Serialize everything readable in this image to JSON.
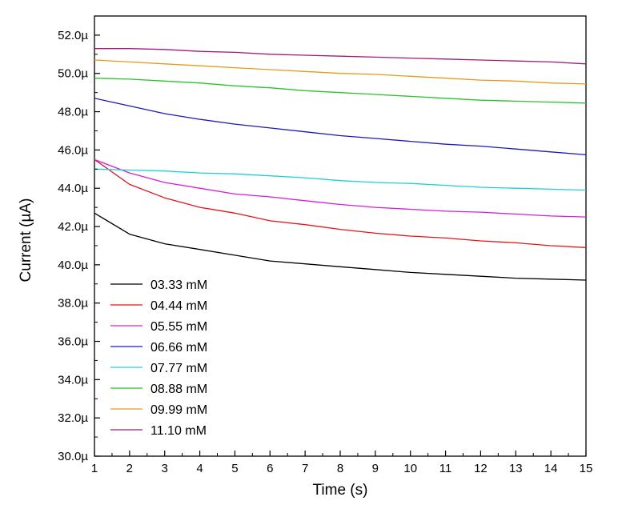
{
  "chart_data": {
    "type": "line",
    "title": "",
    "xlabel": "Time (s)",
    "ylabel": "Current (µA)",
    "xlim": [
      1,
      15
    ],
    "ylim": [
      30.0,
      53.0
    ],
    "x_ticks": [
      1,
      2,
      3,
      4,
      5,
      6,
      7,
      8,
      9,
      10,
      11,
      12,
      13,
      14,
      15
    ],
    "x_tick_labels": [
      "1",
      "2",
      "3",
      "4",
      "5",
      "6",
      "7",
      "8",
      "9",
      "10",
      "11",
      "12",
      "13",
      "14",
      "15"
    ],
    "y_ticks": [
      30,
      32,
      34,
      36,
      38,
      40,
      42,
      44,
      46,
      48,
      50,
      52
    ],
    "y_tick_labels": [
      "30.0µ",
      "32.0µ",
      "34.0µ",
      "36.0µ",
      "38.0µ",
      "40.0µ",
      "42.0µ",
      "44.0µ",
      "46.0µ",
      "48.0µ",
      "50.0µ",
      "52.0µ"
    ],
    "grid": false,
    "legend_position": "bottom-left",
    "x": [
      1,
      2,
      3,
      4,
      5,
      6,
      7,
      8,
      9,
      10,
      11,
      12,
      13,
      14,
      15
    ],
    "series": [
      {
        "name": "03.33 mM",
        "color": "#000000",
        "values": [
          42.7,
          41.6,
          41.1,
          40.8,
          40.5,
          40.2,
          40.05,
          39.9,
          39.75,
          39.6,
          39.5,
          39.4,
          39.3,
          39.25,
          39.2
        ]
      },
      {
        "name": "04.44 mM",
        "color": "#e8141a",
        "values": [
          45.5,
          44.2,
          43.5,
          43.0,
          42.7,
          42.3,
          42.1,
          41.85,
          41.65,
          41.5,
          41.4,
          41.25,
          41.15,
          41.0,
          40.9
        ]
      },
      {
        "name": "05.55 mM",
        "color": "#d61fd6",
        "values": [
          45.5,
          44.8,
          44.3,
          44.0,
          43.7,
          43.55,
          43.35,
          43.15,
          43.0,
          42.9,
          42.8,
          42.75,
          42.65,
          42.55,
          42.5
        ]
      },
      {
        "name": "06.66 mM",
        "color": "#1a1ab8",
        "values": [
          48.7,
          48.3,
          47.9,
          47.6,
          47.35,
          47.15,
          46.95,
          46.75,
          46.6,
          46.45,
          46.3,
          46.2,
          46.05,
          45.9,
          45.75
        ]
      },
      {
        "name": "07.77 mM",
        "color": "#1ad2d6",
        "values": [
          45.0,
          44.95,
          44.9,
          44.8,
          44.75,
          44.65,
          44.55,
          44.4,
          44.3,
          44.25,
          44.15,
          44.05,
          44.0,
          43.95,
          43.9
        ]
      },
      {
        "name": "08.88 mM",
        "color": "#28c428",
        "values": [
          49.75,
          49.7,
          49.6,
          49.5,
          49.35,
          49.25,
          49.1,
          49.0,
          48.9,
          48.8,
          48.7,
          48.6,
          48.55,
          48.5,
          48.45
        ]
      },
      {
        "name": "09.99 mM",
        "color": "#e89a1a",
        "values": [
          50.7,
          50.6,
          50.5,
          50.4,
          50.3,
          50.2,
          50.1,
          50.0,
          49.95,
          49.85,
          49.75,
          49.65,
          49.6,
          49.5,
          49.45
        ]
      },
      {
        "name": "11.10 mM",
        "color": "#a01a7e",
        "values": [
          51.3,
          51.3,
          51.25,
          51.15,
          51.1,
          51.0,
          50.95,
          50.9,
          50.85,
          50.8,
          50.75,
          50.7,
          50.65,
          50.6,
          50.5
        ]
      }
    ]
  }
}
